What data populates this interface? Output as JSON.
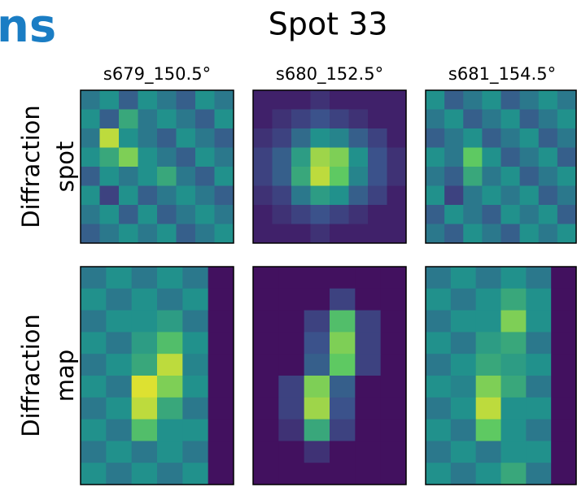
{
  "fragment": "ns",
  "chart_data": {
    "type": "heatmap-grid",
    "title": "Spot 33",
    "colormap": "viridis",
    "columns": [
      "s679_150.5°",
      "s680_152.5°",
      "s681_154.5°"
    ],
    "rows": [
      [
        "Diffraction",
        "spot"
      ],
      [
        "Diffraction",
        "map"
      ]
    ],
    "panels": [
      [
        [
          [
            0.4,
            0.5,
            0.3,
            0.5,
            0.4,
            0.3,
            0.5,
            0.4
          ],
          [
            0.5,
            0.3,
            0.6,
            0.4,
            0.5,
            0.4,
            0.3,
            0.5
          ],
          [
            0.4,
            0.9,
            0.5,
            0.4,
            0.3,
            0.5,
            0.4,
            0.3
          ],
          [
            0.5,
            0.6,
            0.8,
            0.5,
            0.4,
            0.3,
            0.5,
            0.4
          ],
          [
            0.3,
            0.5,
            0.4,
            0.5,
            0.6,
            0.4,
            0.3,
            0.5
          ],
          [
            0.5,
            0.2,
            0.5,
            0.3,
            0.4,
            0.5,
            0.4,
            0.3
          ],
          [
            0.4,
            0.5,
            0.3,
            0.5,
            0.3,
            0.4,
            0.5,
            0.4
          ],
          [
            0.3,
            0.4,
            0.5,
            0.4,
            0.5,
            0.3,
            0.4,
            0.5
          ]
        ],
        [
          [
            0.1,
            0.1,
            0.1,
            0.15,
            0.1,
            0.1,
            0.1,
            0.1
          ],
          [
            0.1,
            0.15,
            0.2,
            0.25,
            0.2,
            0.15,
            0.1,
            0.1
          ],
          [
            0.15,
            0.2,
            0.35,
            0.5,
            0.45,
            0.3,
            0.2,
            0.1
          ],
          [
            0.2,
            0.3,
            0.55,
            0.85,
            0.8,
            0.5,
            0.25,
            0.15
          ],
          [
            0.2,
            0.3,
            0.6,
            0.9,
            0.75,
            0.45,
            0.25,
            0.15
          ],
          [
            0.15,
            0.2,
            0.4,
            0.55,
            0.5,
            0.3,
            0.2,
            0.1
          ],
          [
            0.1,
            0.15,
            0.2,
            0.25,
            0.2,
            0.15,
            0.1,
            0.1
          ],
          [
            0.1,
            0.1,
            0.1,
            0.15,
            0.1,
            0.1,
            0.1,
            0.1
          ]
        ],
        [
          [
            0.5,
            0.3,
            0.4,
            0.5,
            0.3,
            0.4,
            0.5,
            0.4
          ],
          [
            0.4,
            0.5,
            0.3,
            0.4,
            0.5,
            0.3,
            0.4,
            0.5
          ],
          [
            0.3,
            0.4,
            0.5,
            0.3,
            0.4,
            0.5,
            0.3,
            0.4
          ],
          [
            0.5,
            0.4,
            0.75,
            0.5,
            0.3,
            0.4,
            0.5,
            0.3
          ],
          [
            0.4,
            0.3,
            0.6,
            0.4,
            0.5,
            0.3,
            0.4,
            0.5
          ],
          [
            0.5,
            0.2,
            0.4,
            0.5,
            0.4,
            0.5,
            0.3,
            0.4
          ],
          [
            0.3,
            0.5,
            0.4,
            0.3,
            0.5,
            0.4,
            0.5,
            0.3
          ],
          [
            0.4,
            0.3,
            0.5,
            0.4,
            0.3,
            0.5,
            0.4,
            0.5
          ]
        ]
      ],
      [
        [
          [
            0.4,
            0.5,
            0.4,
            0.5,
            0.4,
            0.05
          ],
          [
            0.5,
            0.4,
            0.5,
            0.4,
            0.5,
            0.05
          ],
          [
            0.4,
            0.5,
            0.5,
            0.55,
            0.4,
            0.05
          ],
          [
            0.5,
            0.4,
            0.55,
            0.7,
            0.5,
            0.05
          ],
          [
            0.4,
            0.5,
            0.6,
            0.9,
            0.45,
            0.05
          ],
          [
            0.5,
            0.4,
            0.95,
            0.8,
            0.5,
            0.05
          ],
          [
            0.4,
            0.5,
            0.9,
            0.6,
            0.4,
            0.05
          ],
          [
            0.5,
            0.4,
            0.7,
            0.5,
            0.5,
            0.05
          ],
          [
            0.4,
            0.5,
            0.4,
            0.5,
            0.4,
            0.05
          ],
          [
            0.5,
            0.4,
            0.5,
            0.4,
            0.5,
            0.05
          ]
        ],
        [
          [
            0.05,
            0.05,
            0.05,
            0.05,
            0.05,
            0.05
          ],
          [
            0.05,
            0.05,
            0.05,
            0.2,
            0.05,
            0.05
          ],
          [
            0.05,
            0.05,
            0.2,
            0.7,
            0.2,
            0.05
          ],
          [
            0.05,
            0.05,
            0.25,
            0.8,
            0.2,
            0.05
          ],
          [
            0.05,
            0.05,
            0.3,
            0.75,
            0.2,
            0.05
          ],
          [
            0.05,
            0.2,
            0.8,
            0.3,
            0.05,
            0.05
          ],
          [
            0.05,
            0.2,
            0.85,
            0.25,
            0.05,
            0.05
          ],
          [
            0.05,
            0.15,
            0.6,
            0.2,
            0.05,
            0.05
          ],
          [
            0.05,
            0.05,
            0.15,
            0.05,
            0.05,
            0.05
          ],
          [
            0.05,
            0.05,
            0.05,
            0.05,
            0.05,
            0.05
          ]
        ],
        [
          [
            0.4,
            0.5,
            0.4,
            0.5,
            0.4,
            0.05
          ],
          [
            0.5,
            0.4,
            0.5,
            0.6,
            0.5,
            0.05
          ],
          [
            0.4,
            0.5,
            0.5,
            0.8,
            0.5,
            0.05
          ],
          [
            0.5,
            0.4,
            0.55,
            0.6,
            0.4,
            0.05
          ],
          [
            0.4,
            0.5,
            0.6,
            0.55,
            0.5,
            0.05
          ],
          [
            0.5,
            0.45,
            0.8,
            0.6,
            0.4,
            0.05
          ],
          [
            0.4,
            0.5,
            0.9,
            0.5,
            0.5,
            0.05
          ],
          [
            0.5,
            0.4,
            0.75,
            0.5,
            0.4,
            0.05
          ],
          [
            0.4,
            0.5,
            0.4,
            0.5,
            0.5,
            0.05
          ],
          [
            0.5,
            0.4,
            0.5,
            0.6,
            0.4,
            0.05
          ]
        ]
      ]
    ]
  }
}
